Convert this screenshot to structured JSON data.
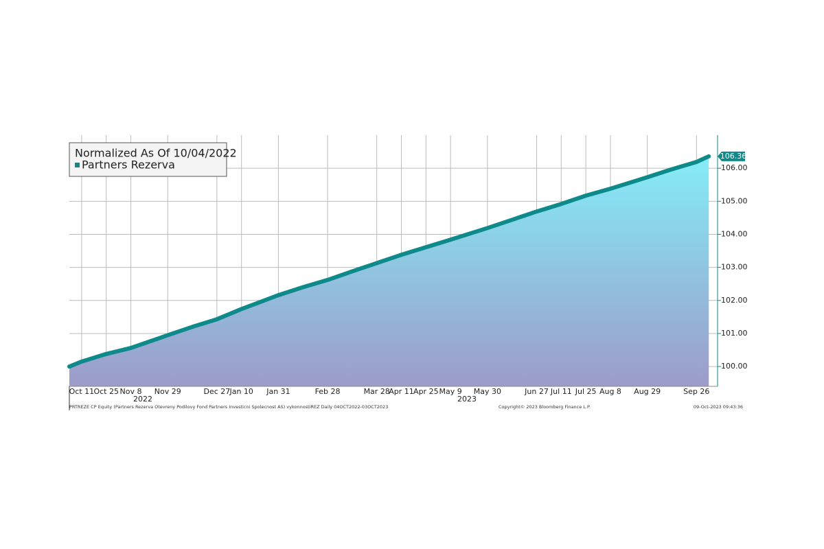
{
  "chart_data": {
    "type": "area",
    "legend_title": "Normalized As Of 10/04/2022",
    "x": [
      "2022-10-04",
      "2022-10-11",
      "2022-10-25",
      "2022-11-08",
      "2022-11-29",
      "2022-12-13",
      "2022-12-27",
      "2023-01-10",
      "2023-01-31",
      "2023-02-14",
      "2023-02-28",
      "2023-03-14",
      "2023-03-28",
      "2023-04-11",
      "2023-04-25",
      "2023-05-09",
      "2023-05-30",
      "2023-06-13",
      "2023-06-27",
      "2023-07-11",
      "2023-07-25",
      "2023-08-08",
      "2023-08-29",
      "2023-09-12",
      "2023-09-26",
      "2023-10-03"
    ],
    "series": [
      {
        "name": "Partners Rezerva",
        "color": "#0e8a8a",
        "values": [
          100.0,
          100.15,
          100.38,
          100.56,
          100.95,
          101.2,
          101.43,
          101.74,
          102.16,
          102.4,
          102.62,
          102.88,
          103.13,
          103.38,
          103.61,
          103.84,
          104.19,
          104.44,
          104.69,
          104.92,
          105.17,
          105.38,
          105.73,
          105.97,
          106.19,
          106.36
        ],
        "last_value_label": "106.36"
      }
    ],
    "xlim": [
      "2022-10-04",
      "2023-10-08"
    ],
    "xticks": [
      {
        "value": "2022-10-11",
        "label": "Oct 11"
      },
      {
        "value": "2022-10-25",
        "label": "Oct 25"
      },
      {
        "value": "2022-11-08",
        "label": "Nov 8"
      },
      {
        "value": "2022-11-29",
        "label": "Nov 29"
      },
      {
        "value": "2022-12-27",
        "label": "Dec 27"
      },
      {
        "value": "2023-01-10",
        "label": "Jan 10"
      },
      {
        "value": "2023-01-31",
        "label": "Jan 31"
      },
      {
        "value": "2023-02-28",
        "label": "Feb 28"
      },
      {
        "value": "2023-03-28",
        "label": "Mar 28"
      },
      {
        "value": "2023-04-11",
        "label": "Apr 11"
      },
      {
        "value": "2023-04-25",
        "label": "Apr 25"
      },
      {
        "value": "2023-05-09",
        "label": "May 9"
      },
      {
        "value": "2023-05-30",
        "label": "May 30"
      },
      {
        "value": "2023-06-27",
        "label": "Jun 27"
      },
      {
        "value": "2023-07-11",
        "label": "Jul 11"
      },
      {
        "value": "2023-07-25",
        "label": "Jul 25"
      },
      {
        "value": "2023-08-08",
        "label": "Aug 8"
      },
      {
        "value": "2023-08-29",
        "label": "Aug 29"
      },
      {
        "value": "2023-09-26",
        "label": "Sep 26"
      }
    ],
    "x_year_labels": [
      "2022",
      "2023"
    ],
    "ylim": [
      99.4,
      107.0
    ],
    "yticks": [
      {
        "value": 100,
        "label": "100.00"
      },
      {
        "value": 101,
        "label": "101.00"
      },
      {
        "value": 102,
        "label": "102.00"
      },
      {
        "value": 103,
        "label": "103.00"
      },
      {
        "value": 104,
        "label": "104.00"
      },
      {
        "value": 105,
        "label": "105.00"
      },
      {
        "value": 106,
        "label": "106.00"
      }
    ],
    "grid": true,
    "fill_top_color": "#84ecf8",
    "fill_bottom_color": "#9d9bc9"
  },
  "footer": {
    "left": "PRTREZE CP Equity (Partners Rezerva Otevreny Podilovy Fond Partners Investicni Spolecnost AS) vykonnostiREZ  Daily 04OCT2022-03OCT2023",
    "center": "Copyright© 2023 Bloomberg Finance L.P.",
    "right": "09-Oct-2023 09:43:36"
  }
}
